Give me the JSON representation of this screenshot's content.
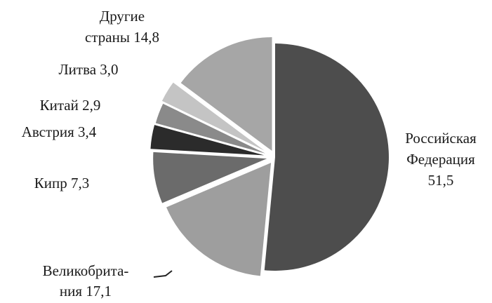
{
  "chart_data": {
    "type": "pie",
    "title": "",
    "legend": "none",
    "slices": [
      {
        "label_lines": [
          "Российская",
          "Федерация",
          "51,5"
        ],
        "value": 51.5,
        "color": "#4d4d4d"
      },
      {
        "label_lines": [
          "Великобрита-",
          "ния 17,1"
        ],
        "value": 17.1,
        "color": "#9e9e9e"
      },
      {
        "label_lines": [
          "Кипр 7,3"
        ],
        "value": 7.3,
        "color": "#6b6b6b"
      },
      {
        "label_lines": [
          "Австрия  3,4"
        ],
        "value": 3.4,
        "color": "#2b2b2b"
      },
      {
        "label_lines": [
          "Китай 2,9"
        ],
        "value": 2.9,
        "color": "#8a8a8a"
      },
      {
        "label_lines": [
          "Литва 3,0"
        ],
        "value": 3.0,
        "color": "#c4c4c4"
      },
      {
        "label_lines": [
          "Другие",
          "страны 14,8"
        ],
        "value": 14.8,
        "color": "#a6a6a6"
      }
    ]
  }
}
